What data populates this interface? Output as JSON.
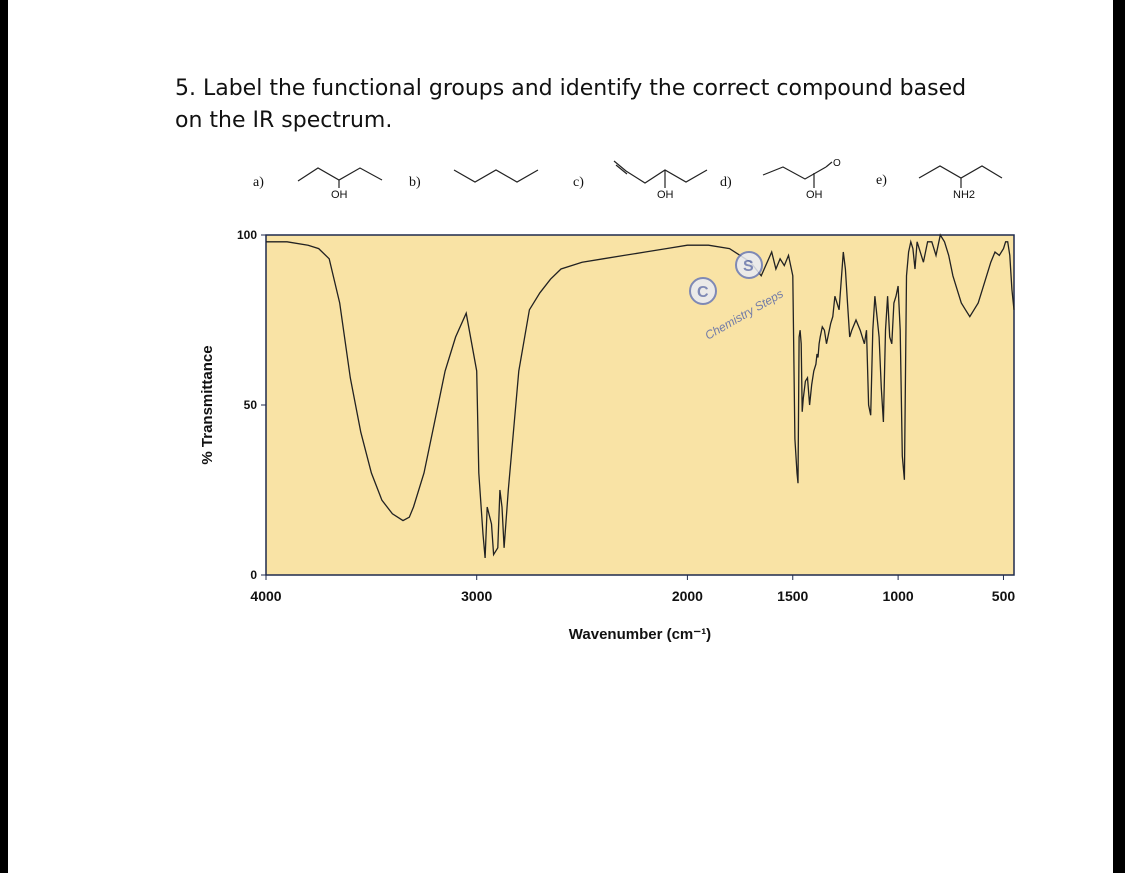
{
  "question": {
    "line1": "5. Label the functional groups and identify the correct compound based",
    "line2": "on the IR spectrum."
  },
  "compounds": [
    {
      "label": "a)",
      "substituent": "OH"
    },
    {
      "label": "b)",
      "substituent": ""
    },
    {
      "label": "c)",
      "substituent": "OH"
    },
    {
      "label": "d)",
      "substituent": "OH",
      "extra": "O"
    },
    {
      "label": "e)",
      "substituent": "NH2"
    }
  ],
  "watermark": {
    "text": "Chemistry Steps",
    "letter_c": "C",
    "letter_s": "S"
  },
  "colors": {
    "plot_bg": "#f9e3a5",
    "trace": "#222222",
    "axis": "#1f2a4d",
    "text": "#111111"
  },
  "chart_data": {
    "type": "line",
    "xlabel": "Wavenumber (cm⁻¹)",
    "ylabel": "% Transmittance",
    "xlim": [
      4000,
      450
    ],
    "ylim": [
      0,
      100
    ],
    "x_reversed": true,
    "x_ticks": [
      4000,
      3000,
      2000,
      1500,
      1000,
      500
    ],
    "y_ticks": [
      0,
      50,
      100
    ],
    "grid": false,
    "series": [
      {
        "x": [
          4000,
          3900,
          3800,
          3750,
          3700,
          3650,
          3600,
          3550,
          3500,
          3450,
          3400,
          3350,
          3320,
          3300,
          3250,
          3200,
          3150,
          3100,
          3050,
          3000,
          2990,
          2970,
          2960,
          2950,
          2930,
          2920,
          2900,
          2890,
          2880,
          2870,
          2850,
          2800,
          2750,
          2700,
          2650,
          2600,
          2500,
          2400,
          2300,
          2200,
          2100,
          2000,
          1900,
          1800,
          1700,
          1650,
          1600,
          1580,
          1560,
          1540,
          1520,
          1500,
          1490,
          1480,
          1475,
          1470,
          1465,
          1460,
          1455,
          1450,
          1440,
          1430,
          1420,
          1410,
          1400,
          1390,
          1385,
          1380,
          1375,
          1370,
          1360,
          1350,
          1340,
          1330,
          1320,
          1310,
          1300,
          1280,
          1260,
          1250,
          1240,
          1230,
          1220,
          1200,
          1180,
          1160,
          1150,
          1140,
          1130,
          1120,
          1110,
          1100,
          1090,
          1080,
          1070,
          1060,
          1050,
          1040,
          1030,
          1020,
          1010,
          1000,
          990,
          980,
          970,
          960,
          950,
          940,
          930,
          920,
          910,
          900,
          880,
          860,
          840,
          820,
          800,
          780,
          760,
          740,
          720,
          700,
          680,
          660,
          640,
          620,
          600,
          580,
          560,
          540,
          520,
          500,
          490,
          480,
          470,
          460,
          450
        ],
        "y": [
          98,
          98,
          97,
          96,
          93,
          80,
          58,
          42,
          30,
          22,
          18,
          16,
          17,
          20,
          30,
          45,
          60,
          70,
          77,
          60,
          30,
          12,
          5,
          20,
          15,
          6,
          8,
          25,
          20,
          8,
          25,
          60,
          78,
          83,
          87,
          90,
          92,
          93,
          94,
          95,
          96,
          97,
          97,
          96,
          92,
          88,
          95,
          90,
          93,
          91,
          94,
          88,
          40,
          30,
          27,
          70,
          72,
          68,
          48,
          52,
          57,
          58,
          50,
          56,
          60,
          62,
          65,
          64,
          68,
          70,
          73,
          72,
          68,
          71,
          74,
          76,
          82,
          78,
          95,
          90,
          80,
          70,
          72,
          75,
          72,
          68,
          72,
          50,
          47,
          72,
          82,
          76,
          70,
          55,
          45,
          72,
          82,
          70,
          68,
          80,
          82,
          85,
          72,
          35,
          28,
          88,
          95,
          98,
          96,
          90,
          98,
          96,
          92,
          98,
          98,
          94,
          100,
          98,
          94,
          88,
          84,
          80,
          78,
          76,
          78,
          80,
          84,
          88,
          92,
          95,
          94,
          96,
          98,
          98,
          94,
          84,
          78
        ]
      }
    ]
  }
}
